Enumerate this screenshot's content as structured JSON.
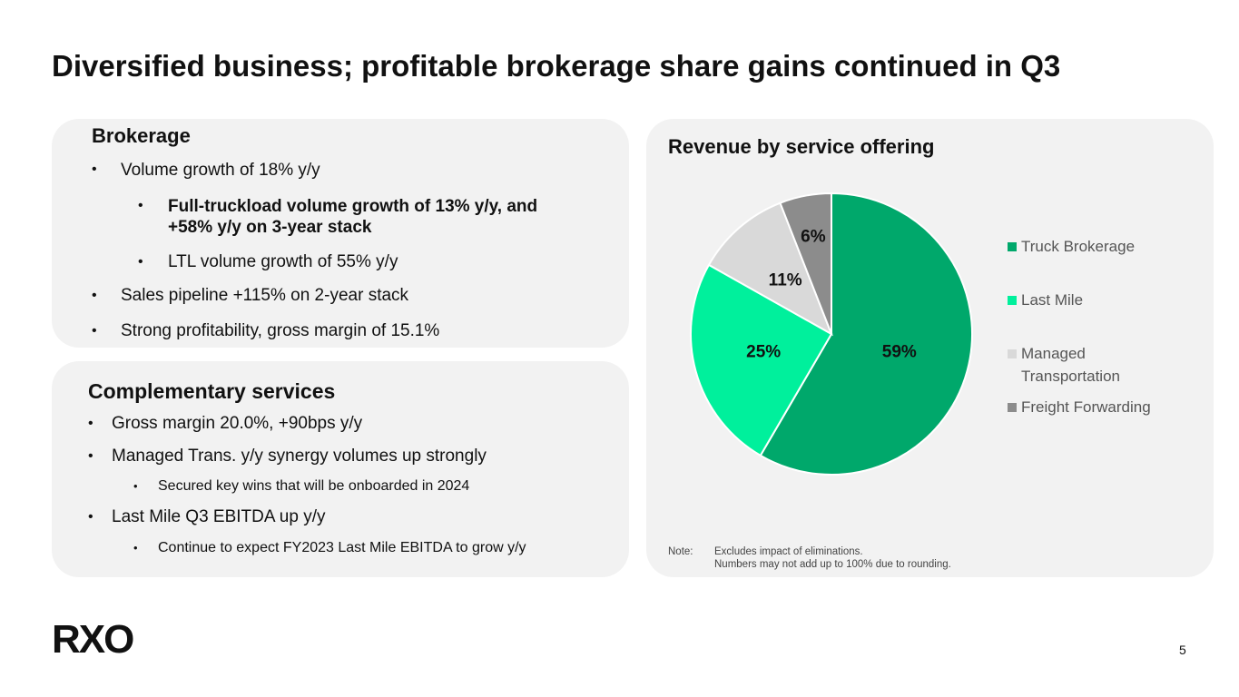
{
  "header": {
    "title": "Diversified business; profitable brokerage share gains continued in Q3"
  },
  "brokerage": {
    "heading": "Brokerage",
    "items": [
      {
        "text": "Volume growth of 18% y/y",
        "subitems": [
          "Full-truckload volume growth of 13% y/y, and +58% y/y on 3-year stack",
          "LTL volume growth of 55% y/y"
        ]
      },
      {
        "text": "Sales pipeline +115% on 2-year stack"
      },
      {
        "text": "Strong profitability, gross margin of 15.1%"
      }
    ]
  },
  "complementary": {
    "heading": "Complementary services",
    "items": [
      {
        "text": "Gross margin 20.0%, +90bps y/y"
      },
      {
        "text": "Managed Trans. y/y synergy volumes up strongly",
        "subitems": [
          "Secured key wins that will be onboarded in 2024"
        ]
      },
      {
        "text": "Last Mile Q3 EBITDA up y/y",
        "subitems": [
          "Continue to expect FY2023 Last Mile EBITDA to grow y/y"
        ]
      }
    ]
  },
  "chart_data": {
    "type": "pie",
    "title": "Revenue by service offering",
    "categories": [
      "Truck Brokerage",
      "Last Mile",
      "Managed Transportation",
      "Freight Forwarding"
    ],
    "values": [
      59,
      25,
      11,
      6
    ],
    "value_labels": [
      "59%",
      "25%",
      "11%",
      "6%"
    ],
    "colors": [
      "#00a86b",
      "#00f09c",
      "#d9d9d9",
      "#8c8c8c"
    ]
  },
  "note": {
    "label": "Note:",
    "lines": [
      "Excludes impact of eliminations.",
      "Numbers may not add up to 100% due to rounding."
    ]
  },
  "footer": {
    "logo": "RXO",
    "page": "5"
  }
}
